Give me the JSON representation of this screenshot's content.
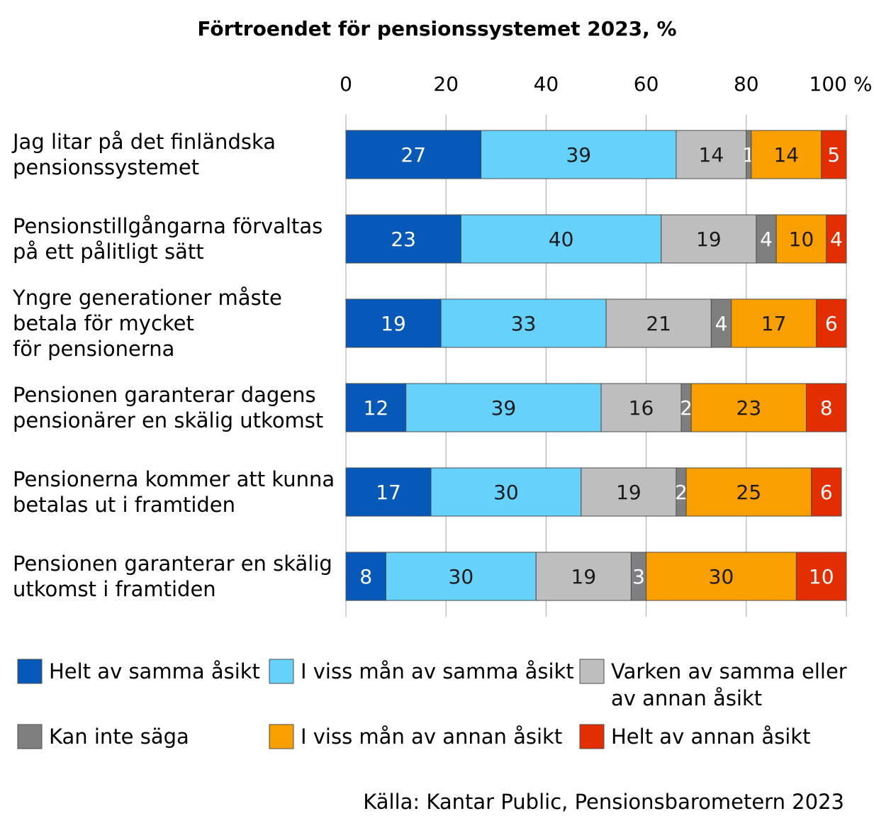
{
  "chart_data": {
    "type": "bar",
    "orientation": "horizontal",
    "stacked": true,
    "title": "Förtroendet för pensionssystemet 2023, %",
    "xlim": [
      0,
      100
    ],
    "x_ticks": [
      "0",
      "20",
      "40",
      "60",
      "80",
      "100 %"
    ],
    "grid": "vertical",
    "legend_position": "bottom",
    "categories": [
      [
        "Jag litar på det finländska",
        "pensionssystemet"
      ],
      [
        "Pensionstillgångarna förvaltas",
        "på ett pålitligt sätt"
      ],
      [
        "Yngre generationer måste",
        "betala för mycket",
        "för pensionerna"
      ],
      [
        "Pensionen garanterar dagens",
        "pensionärer en skälig utkomst"
      ],
      [
        "Pensionerna kommer att kunna",
        "betalas ut i framtiden"
      ],
      [
        "Pensionen garanterar en skälig",
        "utkomst i framtiden"
      ]
    ],
    "series": [
      {
        "name": "Helt av samma åsikt",
        "color": "#0659b8",
        "values": [
          27,
          23,
          19,
          12,
          17,
          8
        ]
      },
      {
        "name": "I viss mån av samma åsikt",
        "color": "#66d1fa",
        "values": [
          39,
          40,
          33,
          39,
          30,
          30
        ]
      },
      {
        "name": [
          "Varken av samma eller",
          "av annan åsikt"
        ],
        "color": "#bebebe",
        "values": [
          14,
          19,
          21,
          16,
          19,
          19
        ]
      },
      {
        "name": "Kan inte säga",
        "color": "#7f7f7f",
        "values": [
          1,
          4,
          4,
          2,
          2,
          3
        ]
      },
      {
        "name": "I viss mån av annan åsikt",
        "color": "#f9a000",
        "values": [
          14,
          10,
          17,
          23,
          25,
          30
        ]
      },
      {
        "name": "Helt av annan åsikt",
        "color": "#e22e00",
        "values": [
          5,
          4,
          6,
          8,
          6,
          10
        ]
      }
    ]
  },
  "source": "Källa: Kantar Public, Pensionsbarometern 2023"
}
